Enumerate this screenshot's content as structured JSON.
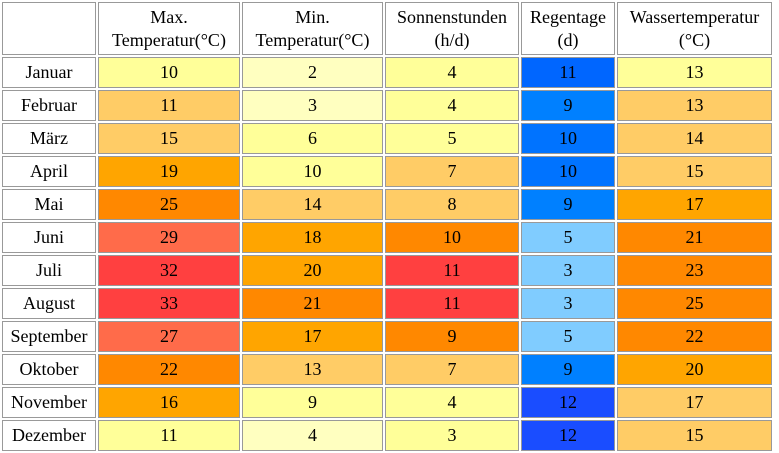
{
  "headers": [
    {
      "line1": "Max.",
      "line2": "Temperatur(°C)"
    },
    {
      "line1": "Min.",
      "line2": "Temperatur(°C)"
    },
    {
      "line1": "Sonnenstunden",
      "line2": "(h/d)"
    },
    {
      "line1": "Regentage",
      "line2": "(d)"
    },
    {
      "line1": "Wassertemperatur",
      "line2": "(°C)"
    }
  ],
  "rows": [
    {
      "month": "Januar",
      "values": [
        "10",
        "2",
        "4",
        "11",
        "13"
      ],
      "colors": [
        "#ffff99",
        "#ffffc0",
        "#ffff99",
        "#0066ff",
        "#ffff99"
      ]
    },
    {
      "month": "Februar",
      "values": [
        "11",
        "3",
        "4",
        "9",
        "13"
      ],
      "colors": [
        "#ffcc66",
        "#ffffc0",
        "#ffff99",
        "#0080ff",
        "#ffcc66"
      ]
    },
    {
      "month": "März",
      "values": [
        "15",
        "6",
        "5",
        "10",
        "14"
      ],
      "colors": [
        "#ffcc66",
        "#ffff99",
        "#ffff99",
        "#0073ff",
        "#ffcc66"
      ]
    },
    {
      "month": "April",
      "values": [
        "19",
        "10",
        "7",
        "10",
        "15"
      ],
      "colors": [
        "#ffa500",
        "#ffff99",
        "#ffcc66",
        "#0073ff",
        "#ffcc66"
      ]
    },
    {
      "month": "Mai",
      "values": [
        "25",
        "14",
        "8",
        "9",
        "17"
      ],
      "colors": [
        "#ff8800",
        "#ffcc66",
        "#ffcc66",
        "#0080ff",
        "#ffa500"
      ]
    },
    {
      "month": "Juni",
      "values": [
        "29",
        "18",
        "10",
        "5",
        "21"
      ],
      "colors": [
        "#ff6b4a",
        "#ffa500",
        "#ff8800",
        "#80ccff",
        "#ff8800"
      ]
    },
    {
      "month": "Juli",
      "values": [
        "32",
        "20",
        "11",
        "3",
        "23"
      ],
      "colors": [
        "#ff4040",
        "#ffa500",
        "#ff4040",
        "#80ccff",
        "#ff8800"
      ]
    },
    {
      "month": "August",
      "values": [
        "33",
        "21",
        "11",
        "3",
        "25"
      ],
      "colors": [
        "#ff4040",
        "#ff8800",
        "#ff4040",
        "#80ccff",
        "#ff8800"
      ]
    },
    {
      "month": "September",
      "values": [
        "27",
        "17",
        "9",
        "5",
        "22"
      ],
      "colors": [
        "#ff6b4a",
        "#ffa500",
        "#ff8800",
        "#80ccff",
        "#ff8800"
      ]
    },
    {
      "month": "Oktober",
      "values": [
        "22",
        "13",
        "7",
        "9",
        "20"
      ],
      "colors": [
        "#ff8800",
        "#ffcc66",
        "#ffcc66",
        "#0080ff",
        "#ffa500"
      ]
    },
    {
      "month": "November",
      "values": [
        "16",
        "9",
        "4",
        "12",
        "17"
      ],
      "colors": [
        "#ffa500",
        "#ffff99",
        "#ffff99",
        "#1a4dff",
        "#ffcc66"
      ]
    },
    {
      "month": "Dezember",
      "values": [
        "11",
        "4",
        "3",
        "12",
        "15"
      ],
      "colors": [
        "#ffff99",
        "#ffffc0",
        "#ffff99",
        "#1a4dff",
        "#ffcc66"
      ]
    }
  ]
}
